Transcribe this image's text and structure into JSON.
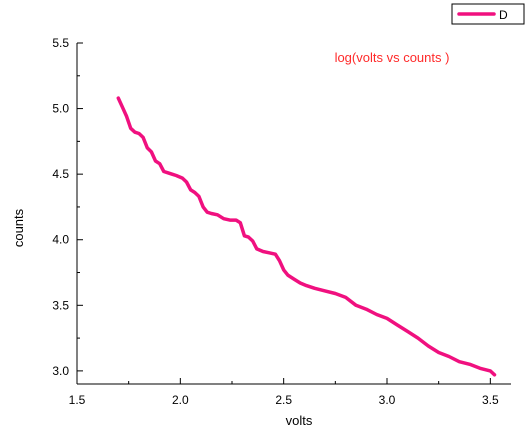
{
  "chart_data": {
    "type": "line",
    "title": "",
    "annotation": "log(volts vs counts )",
    "xlabel": "volts",
    "ylabel": "counts",
    "xlim": [
      1.5,
      3.6
    ],
    "ylim": [
      2.9,
      5.5
    ],
    "x_ticks": [
      "1.5",
      "2.0",
      "2.5",
      "3.0",
      "3.5"
    ],
    "y_ticks": [
      "3.0",
      "3.5",
      "4.0",
      "4.5",
      "5.0",
      "5.5"
    ],
    "grid": false,
    "legend_position": "top-right",
    "series": [
      {
        "name": "D",
        "color": "#f0107f",
        "points": [
          [
            1.7,
            5.08
          ],
          [
            1.72,
            5.01
          ],
          [
            1.74,
            4.94
          ],
          [
            1.76,
            4.85
          ],
          [
            1.78,
            4.82
          ],
          [
            1.8,
            4.81
          ],
          [
            1.82,
            4.78
          ],
          [
            1.84,
            4.7
          ],
          [
            1.86,
            4.67
          ],
          [
            1.88,
            4.6
          ],
          [
            1.9,
            4.58
          ],
          [
            1.92,
            4.52
          ],
          [
            1.94,
            4.51
          ],
          [
            1.96,
            4.5
          ],
          [
            1.98,
            4.49
          ],
          [
            2.01,
            4.47
          ],
          [
            2.03,
            4.44
          ],
          [
            2.05,
            4.38
          ],
          [
            2.07,
            4.36
          ],
          [
            2.09,
            4.33
          ],
          [
            2.11,
            4.25
          ],
          [
            2.13,
            4.21
          ],
          [
            2.15,
            4.2
          ],
          [
            2.18,
            4.19
          ],
          [
            2.21,
            4.16
          ],
          [
            2.24,
            4.15
          ],
          [
            2.27,
            4.15
          ],
          [
            2.29,
            4.13
          ],
          [
            2.31,
            4.03
          ],
          [
            2.33,
            4.02
          ],
          [
            2.35,
            3.99
          ],
          [
            2.37,
            3.93
          ],
          [
            2.4,
            3.91
          ],
          [
            2.43,
            3.9
          ],
          [
            2.46,
            3.89
          ],
          [
            2.48,
            3.84
          ],
          [
            2.5,
            3.77
          ],
          [
            2.52,
            3.73
          ],
          [
            2.55,
            3.7
          ],
          [
            2.58,
            3.67
          ],
          [
            2.61,
            3.65
          ],
          [
            2.65,
            3.63
          ],
          [
            2.7,
            3.61
          ],
          [
            2.75,
            3.59
          ],
          [
            2.8,
            3.56
          ],
          [
            2.85,
            3.5
          ],
          [
            2.9,
            3.47
          ],
          [
            2.95,
            3.43
          ],
          [
            3.0,
            3.4
          ],
          [
            3.05,
            3.35
          ],
          [
            3.1,
            3.3
          ],
          [
            3.15,
            3.25
          ],
          [
            3.2,
            3.19
          ],
          [
            3.25,
            3.14
          ],
          [
            3.3,
            3.11
          ],
          [
            3.35,
            3.07
          ],
          [
            3.4,
            3.05
          ],
          [
            3.45,
            3.02
          ],
          [
            3.5,
            3.0
          ],
          [
            3.52,
            2.97
          ]
        ]
      }
    ]
  }
}
